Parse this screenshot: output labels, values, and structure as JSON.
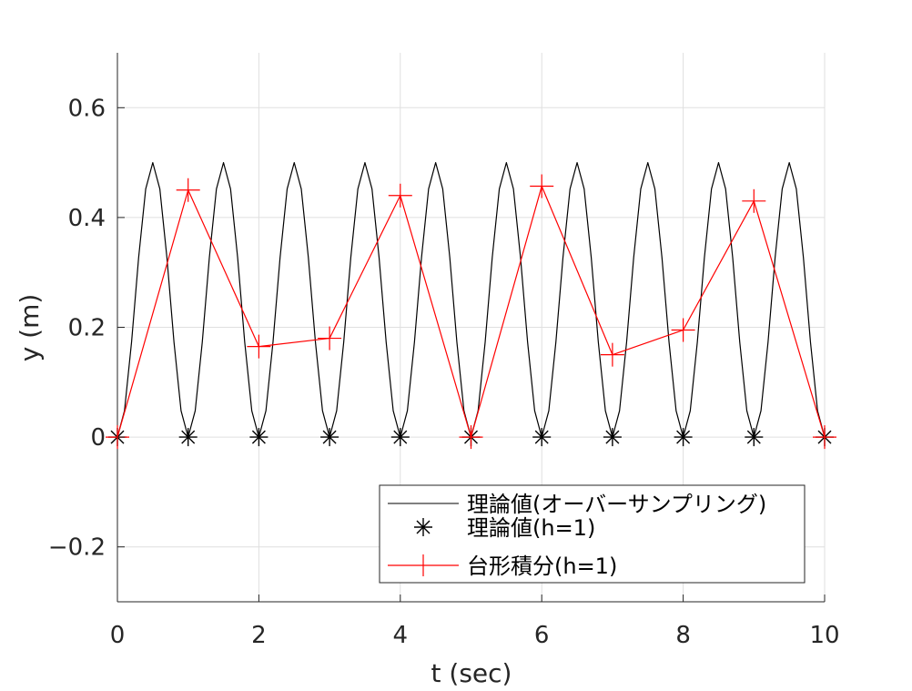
{
  "chart_data": {
    "type": "line",
    "xlabel": "t (sec)",
    "ylabel": "y (m)",
    "xlim": [
      0,
      10
    ],
    "ylim": [
      -0.3,
      0.7
    ],
    "x_ticks": [
      0,
      2,
      4,
      6,
      8,
      10
    ],
    "x_tick_labels": [
      "0",
      "2",
      "4",
      "6",
      "8",
      "10"
    ],
    "y_ticks": [
      -0.2,
      0,
      0.2,
      0.4,
      0.6
    ],
    "y_tick_labels": [
      "−0.2",
      "0",
      "0.2",
      "0.4",
      "0.6"
    ],
    "grid": true,
    "legend_position": "bottom-right",
    "series": [
      {
        "name": "理論値(オーバーサンプリング)",
        "style": "line",
        "color": "#000000",
        "function": "0.5*sin(pi*t)^2",
        "x": [
          0,
          0.1,
          0.2,
          0.3,
          0.4,
          0.5,
          0.6,
          0.7,
          0.8,
          0.9,
          1.0,
          1.1,
          1.2,
          1.3,
          1.4,
          1.5,
          1.6,
          1.7,
          1.8,
          1.9,
          2.0,
          2.1,
          2.2,
          2.3,
          2.4,
          2.5,
          2.6,
          2.7,
          2.8,
          2.9,
          3.0,
          3.1,
          3.2,
          3.3,
          3.4,
          3.5,
          3.6,
          3.7,
          3.8,
          3.9,
          4.0,
          4.1,
          4.2,
          4.3,
          4.4,
          4.5,
          4.6,
          4.7,
          4.8,
          4.9,
          5.0,
          5.1,
          5.2,
          5.3,
          5.4,
          5.5,
          5.6,
          5.7,
          5.8,
          5.9,
          6.0,
          6.1,
          6.2,
          6.3,
          6.4,
          6.5,
          6.6,
          6.7,
          6.8,
          6.9,
          7.0,
          7.1,
          7.2,
          7.3,
          7.4,
          7.5,
          7.6,
          7.7,
          7.8,
          7.9,
          8.0,
          8.1,
          8.2,
          8.3,
          8.4,
          8.5,
          8.6,
          8.7,
          8.8,
          8.9,
          9.0,
          9.1,
          9.2,
          9.3,
          9.4,
          9.5,
          9.6,
          9.7,
          9.8,
          9.9,
          10.0
        ],
        "y": [
          0,
          0.048,
          0.173,
          0.327,
          0.452,
          0.5,
          0.452,
          0.327,
          0.173,
          0.048,
          0,
          0.048,
          0.173,
          0.327,
          0.452,
          0.5,
          0.452,
          0.327,
          0.173,
          0.048,
          0,
          0.048,
          0.173,
          0.327,
          0.452,
          0.5,
          0.452,
          0.327,
          0.173,
          0.048,
          0,
          0.048,
          0.173,
          0.327,
          0.452,
          0.5,
          0.452,
          0.327,
          0.173,
          0.048,
          0,
          0.048,
          0.173,
          0.327,
          0.452,
          0.5,
          0.452,
          0.327,
          0.173,
          0.048,
          0,
          0.048,
          0.173,
          0.327,
          0.452,
          0.5,
          0.452,
          0.327,
          0.173,
          0.048,
          0,
          0.048,
          0.173,
          0.327,
          0.452,
          0.5,
          0.452,
          0.327,
          0.173,
          0.048,
          0,
          0.048,
          0.173,
          0.327,
          0.452,
          0.5,
          0.452,
          0.327,
          0.173,
          0.048,
          0,
          0.048,
          0.173,
          0.327,
          0.452,
          0.5,
          0.452,
          0.327,
          0.173,
          0.048,
          0,
          0.048,
          0.173,
          0.327,
          0.452,
          0.5,
          0.452,
          0.327,
          0.173,
          0.048,
          0
        ]
      },
      {
        "name": "理論値(h=1)",
        "style": "markers",
        "marker": "asterisk",
        "color": "#000000",
        "x": [
          0,
          1,
          2,
          3,
          4,
          5,
          6,
          7,
          8,
          9,
          10
        ],
        "y": [
          0,
          0,
          0,
          0,
          0,
          0,
          0,
          0,
          0,
          0,
          0
        ]
      },
      {
        "name": "台形積分(h=1)",
        "style": "line+markers",
        "marker": "plus",
        "color": "#ff0000",
        "x": [
          0,
          1,
          2,
          3,
          4,
          5,
          6,
          7,
          8,
          9,
          10
        ],
        "y": [
          0,
          0.45,
          0.165,
          0.18,
          0.44,
          0,
          0.457,
          0.15,
          0.195,
          0.43,
          0
        ]
      }
    ]
  }
}
